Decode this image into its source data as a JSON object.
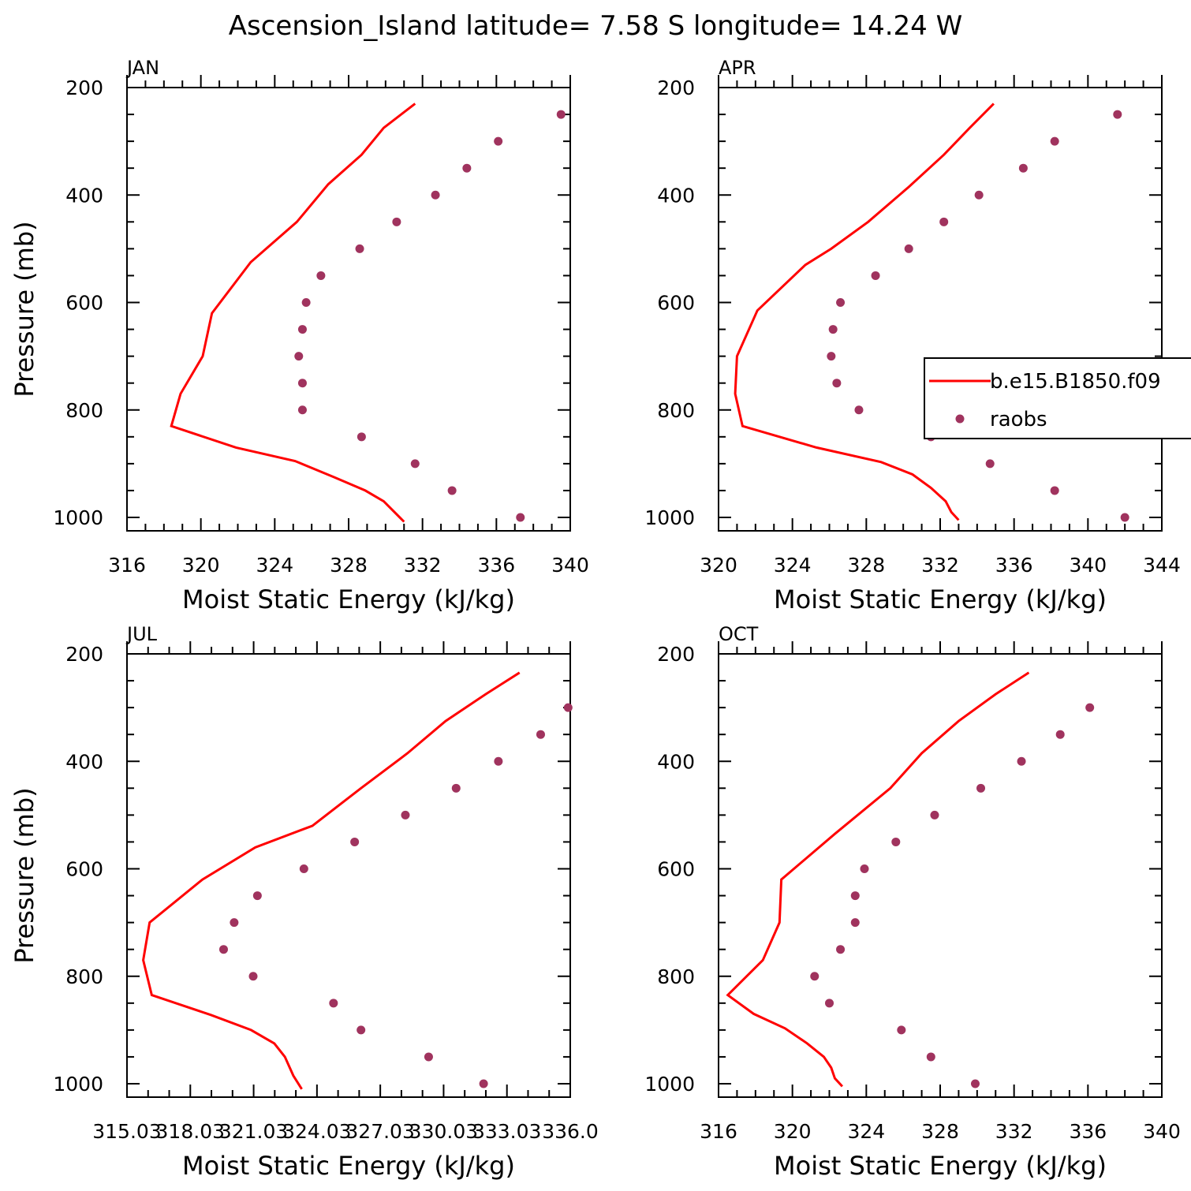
{
  "figure": {
    "title": "Ascension_Island  latitude= 7.58 S longitude= 14.24 W"
  },
  "colors": {
    "model": "#ff0000",
    "obs": "#a0335e",
    "axes": "#000000"
  },
  "chart_data": [
    {
      "type": "line",
      "title": "JAN",
      "xlabel": "Moist Static Energy (kJ/kg)",
      "ylabel": "Pressure (mb)",
      "xlim": [
        316,
        340
      ],
      "ylim": [
        1000,
        200
      ],
      "x_ticks": [
        "316",
        "320",
        "324",
        "328",
        "332",
        "336",
        "340"
      ],
      "y_ticks": [
        "200",
        "400",
        "600",
        "800",
        "1000"
      ],
      "series": [
        {
          "kind": "line",
          "points": [
            [
              331.6,
              230
            ],
            [
              329.9,
              275
            ],
            [
              328.7,
              325
            ],
            [
              326.9,
              380
            ],
            [
              325.2,
              450
            ],
            [
              322.7,
              525
            ],
            [
              320.6,
              620
            ],
            [
              320.1,
              700
            ],
            [
              318.9,
              770
            ],
            [
              318.4,
              830
            ],
            [
              321.9,
              870
            ],
            [
              325.1,
              895
            ],
            [
              327.2,
              925
            ],
            [
              328.9,
              950
            ],
            [
              329.9,
              970
            ],
            [
              331.0,
              1008
            ]
          ]
        },
        {
          "kind": "points",
          "points": [
            [
              339.5,
              250
            ],
            [
              336.1,
              300
            ],
            [
              334.4,
              350
            ],
            [
              332.7,
              400
            ],
            [
              330.6,
              450
            ],
            [
              328.6,
              500
            ],
            [
              326.5,
              550
            ],
            [
              325.7,
              600
            ],
            [
              325.5,
              650
            ],
            [
              325.3,
              700
            ],
            [
              325.5,
              750
            ],
            [
              325.5,
              800
            ],
            [
              328.7,
              850
            ],
            [
              331.6,
              900
            ],
            [
              333.6,
              950
            ],
            [
              337.3,
              1000
            ]
          ]
        }
      ]
    },
    {
      "type": "line",
      "title": "APR",
      "xlabel": "Moist Static Energy (kJ/kg)",
      "ylabel": "",
      "xlim": [
        320,
        344
      ],
      "ylim": [
        1000,
        200
      ],
      "x_ticks": [
        "320",
        "324",
        "328",
        "332",
        "336",
        "340",
        "344"
      ],
      "y_ticks": [
        "200",
        "400",
        "600",
        "800",
        "1000"
      ],
      "series": [
        {
          "kind": "line",
          "name": "b.e15.B1850.f09",
          "points": [
            [
              334.9,
              230
            ],
            [
              333.6,
              275
            ],
            [
              332.2,
              325
            ],
            [
              330.3,
              385
            ],
            [
              328.1,
              450
            ],
            [
              326.1,
              500
            ],
            [
              324.7,
              530
            ],
            [
              322.1,
              615
            ],
            [
              321.0,
              700
            ],
            [
              320.9,
              770
            ],
            [
              321.3,
              830
            ],
            [
              325.3,
              870
            ],
            [
              328.8,
              897
            ],
            [
              330.5,
              920
            ],
            [
              331.5,
              945
            ],
            [
              332.3,
              970
            ],
            [
              332.6,
              990
            ],
            [
              333.0,
              1005
            ]
          ]
        },
        {
          "kind": "points",
          "name": "raobs",
          "points": [
            [
              341.6,
              250
            ],
            [
              338.2,
              300
            ],
            [
              336.5,
              350
            ],
            [
              334.1,
              400
            ],
            [
              332.2,
              450
            ],
            [
              330.3,
              500
            ],
            [
              328.5,
              550
            ],
            [
              326.6,
              600
            ],
            [
              326.2,
              650
            ],
            [
              326.1,
              700
            ],
            [
              326.4,
              750
            ],
            [
              327.6,
              800
            ],
            [
              331.5,
              850
            ],
            [
              334.7,
              900
            ],
            [
              338.2,
              950
            ],
            [
              342.0,
              1000
            ]
          ]
        }
      ]
    },
    {
      "type": "line",
      "title": "JUL",
      "xlabel": "Moist Static Energy (kJ/kg)",
      "ylabel": "Pressure (mb)",
      "xlim": [
        315.03,
        336.0
      ],
      "ylim": [
        1000,
        200
      ],
      "x_ticks": [
        "315.03",
        "318.03",
        "321.03",
        "324.03",
        "327.03",
        "330.03",
        "333.03",
        "336.0"
      ],
      "y_ticks": [
        "200",
        "400",
        "600",
        "800",
        "1000"
      ],
      "series": [
        {
          "kind": "line",
          "points": [
            [
              333.6,
              235
            ],
            [
              332.0,
              275
            ],
            [
              330.1,
              325
            ],
            [
              328.3,
              385
            ],
            [
              326.1,
              450
            ],
            [
              323.8,
              520
            ],
            [
              321.1,
              560
            ],
            [
              318.6,
              620
            ],
            [
              316.1,
              700
            ],
            [
              315.8,
              770
            ],
            [
              316.2,
              835
            ],
            [
              319.0,
              872
            ],
            [
              320.9,
              900
            ],
            [
              322.0,
              925
            ],
            [
              322.5,
              950
            ],
            [
              322.9,
              985
            ],
            [
              323.3,
              1010
            ]
          ]
        },
        {
          "kind": "points",
          "points": [
            [
              335.9,
              300
            ],
            [
              334.6,
              350
            ],
            [
              332.6,
              400
            ],
            [
              330.6,
              450
            ],
            [
              328.2,
              500
            ],
            [
              325.8,
              550
            ],
            [
              323.4,
              600
            ],
            [
              321.2,
              650
            ],
            [
              320.1,
              700
            ],
            [
              319.6,
              750
            ],
            [
              321.0,
              800
            ],
            [
              324.8,
              850
            ],
            [
              326.1,
              900
            ],
            [
              329.3,
              950
            ],
            [
              331.9,
              1000
            ]
          ]
        }
      ]
    },
    {
      "type": "line",
      "title": "OCT",
      "xlabel": "Moist Static Energy (kJ/kg)",
      "ylabel": "",
      "xlim": [
        316,
        340
      ],
      "ylim": [
        1000,
        200
      ],
      "x_ticks": [
        "316",
        "320",
        "324",
        "328",
        "332",
        "336",
        "340"
      ],
      "y_ticks": [
        "200",
        "400",
        "600",
        "800",
        "1000"
      ],
      "series": [
        {
          "kind": "line",
          "points": [
            [
              332.8,
              235
            ],
            [
              331.0,
              275
            ],
            [
              329.0,
              325
            ],
            [
              327.0,
              385
            ],
            [
              325.3,
              450
            ],
            [
              322.3,
              535
            ],
            [
              319.4,
              620
            ],
            [
              319.3,
              700
            ],
            [
              318.4,
              770
            ],
            [
              316.5,
              835
            ],
            [
              317.9,
              870
            ],
            [
              319.6,
              897
            ],
            [
              320.8,
              925
            ],
            [
              321.7,
              950
            ],
            [
              322.1,
              970
            ],
            [
              322.3,
              990
            ],
            [
              322.7,
              1005
            ]
          ]
        },
        {
          "kind": "points",
          "points": [
            [
              336.1,
              300
            ],
            [
              334.5,
              350
            ],
            [
              332.4,
              400
            ],
            [
              330.2,
              450
            ],
            [
              327.7,
              500
            ],
            [
              325.6,
              550
            ],
            [
              323.9,
              600
            ],
            [
              323.4,
              650
            ],
            [
              323.4,
              700
            ],
            [
              322.6,
              750
            ],
            [
              321.2,
              800
            ],
            [
              322.0,
              850
            ],
            [
              325.9,
              900
            ],
            [
              327.5,
              950
            ],
            [
              329.9,
              1000
            ]
          ]
        }
      ]
    }
  ]
}
